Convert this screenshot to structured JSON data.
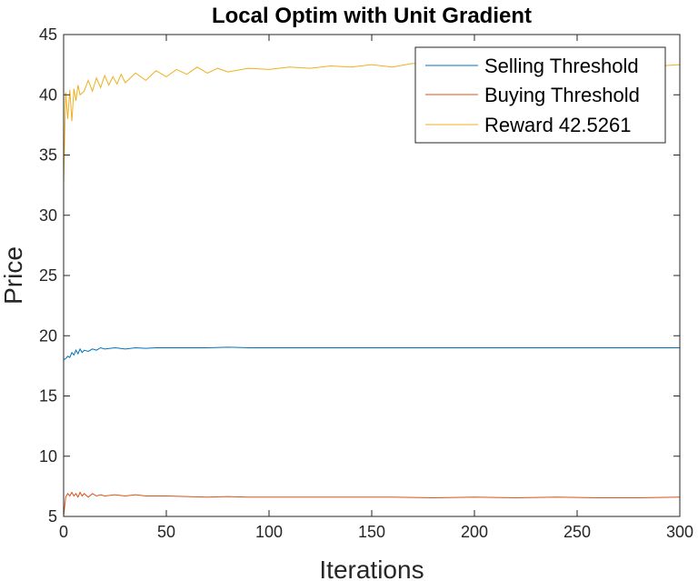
{
  "chart_data": {
    "type": "line",
    "title": "Local Optim with Unit Gradient",
    "xlabel": "Iterations",
    "ylabel": "Price",
    "xlim": [
      0,
      300
    ],
    "ylim": [
      5,
      45
    ],
    "x_ticks": [
      0,
      50,
      100,
      150,
      200,
      250,
      300
    ],
    "y_ticks": [
      5,
      10,
      15,
      20,
      25,
      30,
      35,
      40,
      45
    ],
    "grid": false,
    "legend_position": "top-right",
    "series": [
      {
        "name": "Selling Threshold",
        "color": "#0072BD",
        "x": [
          0,
          1,
          2,
          3,
          4,
          5,
          6,
          7,
          8,
          9,
          10,
          12,
          14,
          16,
          18,
          20,
          25,
          30,
          35,
          40,
          45,
          50,
          60,
          70,
          80,
          90,
          100,
          120,
          140,
          160,
          180,
          200,
          220,
          240,
          260,
          280,
          300
        ],
        "y": [
          18.0,
          18.1,
          18.3,
          18.2,
          18.6,
          18.4,
          18.8,
          18.5,
          18.9,
          18.6,
          18.8,
          18.7,
          18.9,
          18.8,
          19.0,
          18.9,
          19.0,
          18.9,
          19.0,
          18.95,
          19.0,
          19.0,
          19.0,
          19.0,
          19.05,
          19.0,
          19.0,
          19.0,
          19.0,
          19.0,
          19.0,
          19.0,
          19.0,
          19.0,
          19.0,
          19.0,
          19.0
        ]
      },
      {
        "name": "Buying Threshold",
        "color": "#D95319",
        "x": [
          0,
          1,
          2,
          3,
          4,
          5,
          6,
          7,
          8,
          9,
          10,
          12,
          14,
          16,
          18,
          20,
          25,
          30,
          35,
          40,
          45,
          50,
          60,
          70,
          80,
          90,
          100,
          120,
          140,
          160,
          180,
          200,
          220,
          240,
          260,
          280,
          300
        ],
        "y": [
          5.0,
          6.6,
          6.9,
          6.7,
          7.0,
          6.7,
          6.9,
          6.6,
          7.0,
          6.7,
          6.9,
          6.6,
          6.9,
          6.7,
          6.8,
          6.7,
          6.8,
          6.7,
          6.8,
          6.7,
          6.7,
          6.7,
          6.65,
          6.6,
          6.65,
          6.6,
          6.6,
          6.6,
          6.6,
          6.6,
          6.55,
          6.6,
          6.55,
          6.6,
          6.55,
          6.55,
          6.6
        ]
      },
      {
        "name": "Reward 42.5261",
        "color": "#EDB120",
        "x": [
          0,
          1,
          2,
          3,
          4,
          5,
          6,
          7,
          8,
          10,
          12,
          14,
          16,
          18,
          20,
          22,
          24,
          26,
          28,
          30,
          35,
          40,
          45,
          50,
          55,
          60,
          65,
          70,
          75,
          80,
          90,
          100,
          110,
          120,
          130,
          140,
          150,
          160,
          170,
          180,
          190,
          200,
          210,
          220,
          230,
          240,
          250,
          260,
          270,
          280,
          290,
          300
        ],
        "y": [
          32.5,
          40.2,
          38.0,
          40.4,
          37.8,
          40.5,
          39.5,
          40.8,
          40.0,
          40.3,
          41.2,
          40.3,
          41.4,
          40.6,
          41.6,
          40.8,
          41.5,
          40.9,
          41.7,
          41.0,
          41.8,
          41.2,
          42.0,
          41.5,
          42.1,
          41.7,
          42.3,
          41.8,
          42.2,
          41.9,
          42.2,
          42.1,
          42.3,
          42.2,
          42.4,
          42.3,
          42.5,
          42.3,
          42.6,
          42.4,
          42.5,
          42.5,
          42.4,
          42.6,
          42.5,
          42.4,
          42.6,
          42.4,
          42.6,
          42.5,
          42.4,
          42.5
        ]
      }
    ]
  }
}
